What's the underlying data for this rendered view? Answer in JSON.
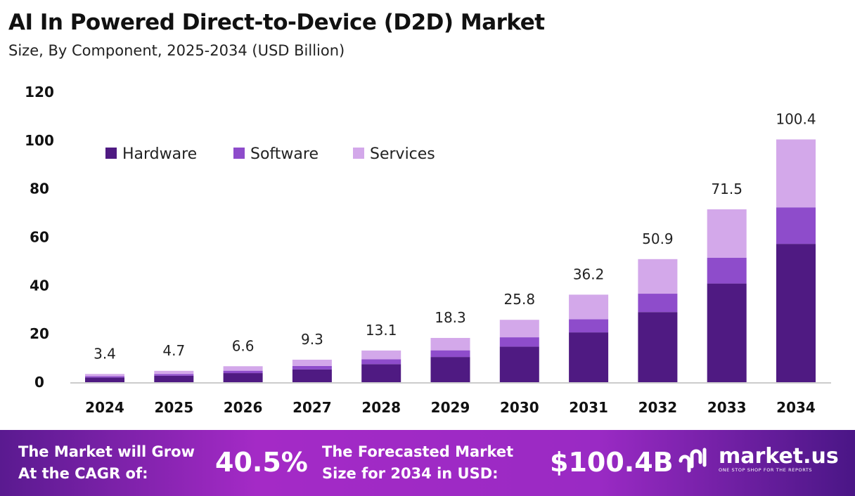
{
  "title": "AI In Powered Direct-to-Device (D2D) Market",
  "subtitle": "Size, By Component, 2025-2034 (USD Billion)",
  "chart_data": {
    "type": "bar",
    "stacked": true,
    "categories": [
      "2024",
      "2025",
      "2026",
      "2027",
      "2028",
      "2029",
      "2030",
      "2031",
      "2032",
      "2033",
      "2034"
    ],
    "series": [
      {
        "name": "Hardware",
        "color": "#4f1a82",
        "values": [
          1.94,
          2.68,
          3.76,
          5.3,
          7.47,
          10.43,
          14.7,
          20.6,
          29.0,
          40.8,
          57.2
        ]
      },
      {
        "name": "Software",
        "color": "#8e4ccb",
        "values": [
          0.51,
          0.71,
          0.99,
          1.4,
          1.97,
          2.75,
          3.87,
          5.4,
          7.6,
          10.7,
          15.1
        ]
      },
      {
        "name": "Services",
        "color": "#d3a8ea",
        "values": [
          0.95,
          1.31,
          1.85,
          2.6,
          3.66,
          5.12,
          7.23,
          10.2,
          14.3,
          20.0,
          28.1
        ]
      }
    ],
    "totals": [
      "3.4",
      "4.7",
      "6.6",
      "9.3",
      "13.1",
      "18.3",
      "25.8",
      "36.2",
      "50.9",
      "71.5",
      "100.4"
    ],
    "ylim": [
      0,
      120
    ],
    "yticks": [
      "0",
      "20",
      "40",
      "60",
      "80",
      "100",
      "120"
    ],
    "grid": false,
    "legend": "top-left"
  },
  "footer": {
    "cagr_label_1": "The Market will Grow",
    "cagr_label_2": "At the CAGR of:",
    "cagr_value": "40.5%",
    "size_label_1": "The Forecasted Market",
    "size_label_2": "Size for 2034 in USD:",
    "size_value": "$100.4B",
    "logo_text": "market.us",
    "logo_tagline": "ONE STOP SHOP FOR THE REPORTS"
  }
}
